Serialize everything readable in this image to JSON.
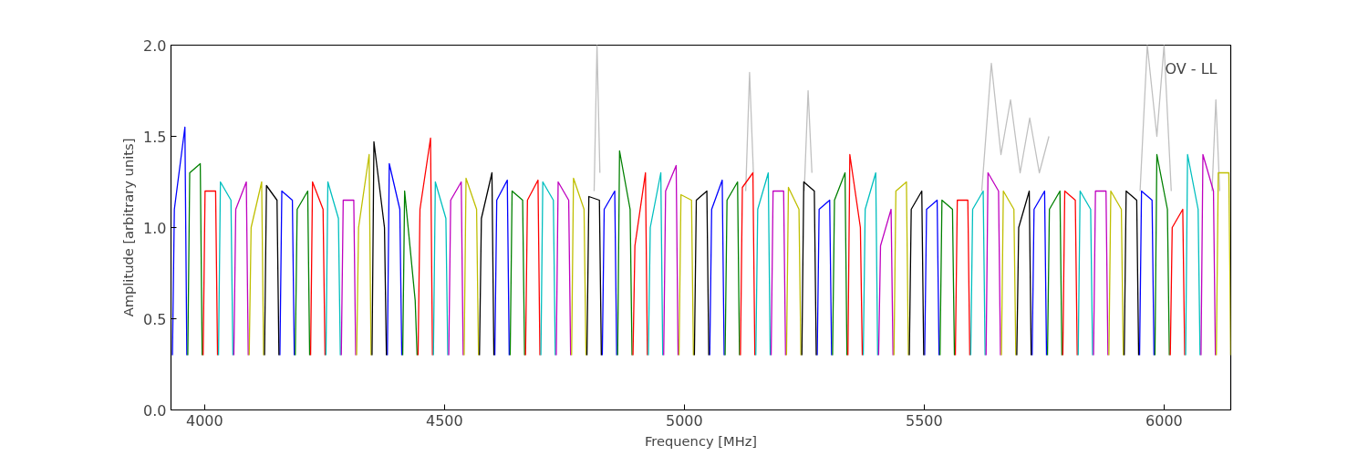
{
  "chart_data": {
    "type": "line",
    "xlabel": "Frequency [MHz]",
    "ylabel": "Amplitude [arbitrary units]",
    "annotations": [
      "OV - LL"
    ],
    "xlim": [
      3930,
      6139
    ],
    "ylim": [
      0,
      2
    ],
    "xticks": [
      4000,
      4500,
      5000,
      5500,
      6000
    ],
    "yticks": [
      {
        "value": 0,
        "label": "0.0"
      },
      {
        "value": 0.5,
        "label": "0.5"
      },
      {
        "value": 1,
        "label": "1.0"
      },
      {
        "value": 1.5,
        "label": "1.5"
      },
      {
        "value": 2,
        "label": "2.0"
      }
    ],
    "grid": false,
    "marker": "none",
    "line_style": "solid",
    "series": [
      {
        "color": "#c0c0c0",
        "x": [
          4812,
          4818,
          4824,
          4825,
          5128,
          5136,
          5144,
          5145,
          5250,
          5258,
          5266,
          5267,
          5620,
          5640,
          5660,
          5680,
          5700,
          5720,
          5740,
          5760,
          5761,
          5950,
          5965,
          5985,
          6000,
          6015,
          6016,
          6100,
          6108,
          6116
        ],
        "values": [
          1.2,
          2.0,
          1.3,
          null,
          1.2,
          1.85,
          1.3,
          null,
          1.2,
          1.75,
          1.3,
          null,
          1.2,
          1.9,
          1.4,
          1.7,
          1.3,
          1.6,
          1.3,
          1.5,
          null,
          1.2,
          2.0,
          1.5,
          2.0,
          1.2,
          null,
          1.2,
          1.7,
          1.2
        ]
      },
      {
        "color": "#0000ff",
        "x": [
          3933,
          3937,
          3959,
          3963,
          3964,
          4157,
          4161,
          4183,
          4187,
          4188,
          4381,
          4385,
          4407,
          4411,
          4412,
          4605,
          4609,
          4631,
          4635,
          4636,
          4829,
          4833,
          4855,
          4859,
          4860,
          5053,
          5057,
          5079,
          5083,
          5084,
          5277,
          5281,
          5303,
          5307,
          5308,
          5501,
          5505,
          5527,
          5531,
          5532,
          5725,
          5729,
          5751,
          5755,
          5756,
          5949,
          5953,
          5975,
          5979
        ],
        "values": [
          0.3,
          1.1,
          1.55,
          0.3,
          null,
          0.3,
          1.2,
          1.15,
          0.3,
          null,
          0.3,
          1.35,
          1.1,
          0.3,
          null,
          0.3,
          1.15,
          1.26,
          0.3,
          null,
          0.3,
          1.1,
          1.2,
          0.3,
          null,
          0.3,
          1.1,
          1.26,
          0.3,
          null,
          0.3,
          1.1,
          1.15,
          0.3,
          null,
          0.3,
          1.1,
          1.15,
          0.3,
          null,
          0.3,
          1.1,
          1.2,
          0.3,
          null,
          0.3,
          1.2,
          1.15,
          0.3
        ]
      },
      {
        "color": "#008000",
        "x": [
          3965,
          3969,
          3991,
          3995,
          3996,
          4189,
          4193,
          4215,
          4219,
          4220,
          4413,
          4417,
          4439,
          4443,
          4444,
          4637,
          4641,
          4663,
          4667,
          4668,
          4861,
          4865,
          4887,
          4891,
          4892,
          5085,
          5089,
          5111,
          5115,
          5116,
          5309,
          5313,
          5335,
          5339,
          5340,
          5533,
          5537,
          5559,
          5563,
          5564,
          5757,
          5761,
          5783,
          5787,
          5788,
          5981,
          5985,
          6007,
          6011
        ],
        "values": [
          0.3,
          1.3,
          1.35,
          0.3,
          null,
          0.3,
          1.1,
          1.2,
          0.3,
          null,
          0.3,
          1.2,
          0.6,
          0.3,
          null,
          0.3,
          1.2,
          1.15,
          0.3,
          null,
          0.3,
          1.42,
          1.1,
          0.3,
          null,
          0.3,
          1.15,
          1.25,
          0.3,
          null,
          0.3,
          1.15,
          1.3,
          0.3,
          null,
          0.3,
          1.15,
          1.1,
          0.3,
          null,
          0.3,
          1.1,
          1.2,
          0.3,
          null,
          0.3,
          1.4,
          1.1,
          0.3
        ]
      },
      {
        "color": "#ff0000",
        "x": [
          3997,
          4001,
          4023,
          4027,
          4028,
          4221,
          4225,
          4247,
          4251,
          4252,
          4445,
          4449,
          4471,
          4475,
          4476,
          4669,
          4673,
          4695,
          4699,
          4700,
          4893,
          4897,
          4919,
          4923,
          4924,
          5117,
          5121,
          5143,
          5147,
          5148,
          5341,
          5345,
          5367,
          5371,
          5372,
          5565,
          5569,
          5591,
          5595,
          5596,
          5789,
          5793,
          5815,
          5819,
          5820,
          6013,
          6017,
          6039,
          6043
        ],
        "values": [
          0.3,
          1.2,
          1.2,
          0.3,
          null,
          0.3,
          1.25,
          1.1,
          0.3,
          null,
          0.3,
          1.1,
          1.49,
          0.3,
          null,
          0.3,
          1.15,
          1.26,
          0.3,
          null,
          0.3,
          0.9,
          1.3,
          0.3,
          null,
          0.3,
          1.22,
          1.3,
          0.3,
          null,
          0.3,
          1.4,
          1.0,
          0.3,
          null,
          0.3,
          1.15,
          1.15,
          0.3,
          null,
          0.3,
          1.2,
          1.15,
          0.3,
          null,
          0.3,
          1.0,
          1.1,
          0.3
        ]
      },
      {
        "color": "#00bfbf",
        "x": [
          4029,
          4033,
          4055,
          4059,
          4060,
          4253,
          4257,
          4279,
          4283,
          4284,
          4477,
          4481,
          4503,
          4507,
          4508,
          4701,
          4705,
          4727,
          4731,
          4732,
          4925,
          4929,
          4951,
          4955,
          4956,
          5149,
          5153,
          5175,
          5179,
          5180,
          5373,
          5377,
          5399,
          5403,
          5404,
          5597,
          5601,
          5623,
          5627,
          5628,
          5821,
          5825,
          5847,
          5851,
          5852,
          6045,
          6049,
          6071,
          6075
        ],
        "values": [
          0.3,
          1.25,
          1.15,
          0.3,
          null,
          0.3,
          1.25,
          1.05,
          0.3,
          null,
          0.3,
          1.25,
          1.05,
          0.3,
          null,
          0.3,
          1.25,
          1.15,
          0.3,
          null,
          0.3,
          1.0,
          1.3,
          0.3,
          null,
          0.3,
          1.1,
          1.3,
          0.3,
          null,
          0.3,
          1.1,
          1.3,
          0.3,
          null,
          0.3,
          1.1,
          1.2,
          0.3,
          null,
          0.3,
          1.2,
          1.1,
          0.3,
          null,
          0.3,
          1.4,
          1.1,
          0.3
        ]
      },
      {
        "color": "#bf00bf",
        "x": [
          4061,
          4065,
          4087,
          4091,
          4092,
          4285,
          4289,
          4311,
          4315,
          4316,
          4509,
          4513,
          4535,
          4539,
          4540,
          4733,
          4737,
          4759,
          4763,
          4764,
          4957,
          4961,
          4983,
          4987,
          4988,
          5181,
          5185,
          5207,
          5211,
          5212,
          5405,
          5409,
          5431,
          5435,
          5436,
          5629,
          5633,
          5655,
          5659,
          5660,
          5853,
          5857,
          5879,
          5883,
          5884,
          6077,
          6081,
          6103,
          6107
        ],
        "values": [
          0.3,
          1.1,
          1.25,
          0.3,
          null,
          0.3,
          1.15,
          1.15,
          0.3,
          null,
          0.3,
          1.15,
          1.25,
          0.3,
          null,
          0.3,
          1.25,
          1.15,
          0.3,
          null,
          0.3,
          1.2,
          1.34,
          0.3,
          null,
          0.3,
          1.2,
          1.2,
          0.3,
          null,
          0.3,
          0.9,
          1.1,
          0.3,
          null,
          0.3,
          1.3,
          1.2,
          0.3,
          null,
          0.3,
          1.2,
          1.2,
          0.3,
          null,
          0.3,
          1.4,
          1.2,
          0.3
        ]
      },
      {
        "color": "#bfbf00",
        "x": [
          4093,
          4097,
          4119,
          4123,
          4124,
          4317,
          4321,
          4343,
          4347,
          4348,
          4541,
          4545,
          4567,
          4571,
          4572,
          4765,
          4769,
          4791,
          4795,
          4796,
          4989,
          4993,
          5015,
          5019,
          5020,
          5213,
          5217,
          5239,
          5243,
          5244,
          5437,
          5441,
          5463,
          5467,
          5468,
          5661,
          5665,
          5687,
          5691,
          5692,
          5885,
          5889,
          5911,
          5915,
          5916,
          6109,
          6113,
          6135,
          6139
        ],
        "values": [
          0.3,
          1.0,
          1.25,
          0.3,
          null,
          0.3,
          1.0,
          1.4,
          0.3,
          null,
          0.3,
          1.27,
          1.1,
          0.3,
          null,
          0.3,
          1.27,
          1.1,
          0.3,
          null,
          0.3,
          1.18,
          1.15,
          0.3,
          null,
          0.3,
          1.22,
          1.1,
          0.3,
          null,
          0.3,
          1.2,
          1.25,
          0.3,
          null,
          0.3,
          1.2,
          1.1,
          0.3,
          null,
          0.3,
          1.2,
          1.1,
          0.3,
          null,
          0.3,
          1.3,
          1.3,
          0.3
        ]
      },
      {
        "color": "#000000",
        "x": [
          4125,
          4129,
          4151,
          4155,
          4156,
          4349,
          4353,
          4375,
          4379,
          4380,
          4573,
          4577,
          4599,
          4603,
          4604,
          4797,
          4801,
          4823,
          4827,
          4828,
          5021,
          5025,
          5047,
          5051,
          5052,
          5245,
          5249,
          5271,
          5275,
          5276,
          5469,
          5473,
          5495,
          5499,
          5500,
          5693,
          5697,
          5719,
          5723,
          5724,
          5917,
          5921,
          5943,
          5947
        ],
        "values": [
          0.3,
          1.23,
          1.15,
          0.3,
          null,
          0.3,
          1.47,
          1.0,
          0.3,
          null,
          0.3,
          1.05,
          1.3,
          0.3,
          null,
          0.3,
          1.17,
          1.15,
          0.3,
          null,
          0.3,
          1.15,
          1.2,
          0.3,
          null,
          0.3,
          1.25,
          1.2,
          0.3,
          null,
          0.3,
          1.1,
          1.2,
          0.3,
          null,
          0.3,
          1.0,
          1.2,
          0.3,
          null,
          0.3,
          1.2,
          1.15,
          0.3
        ]
      }
    ]
  }
}
